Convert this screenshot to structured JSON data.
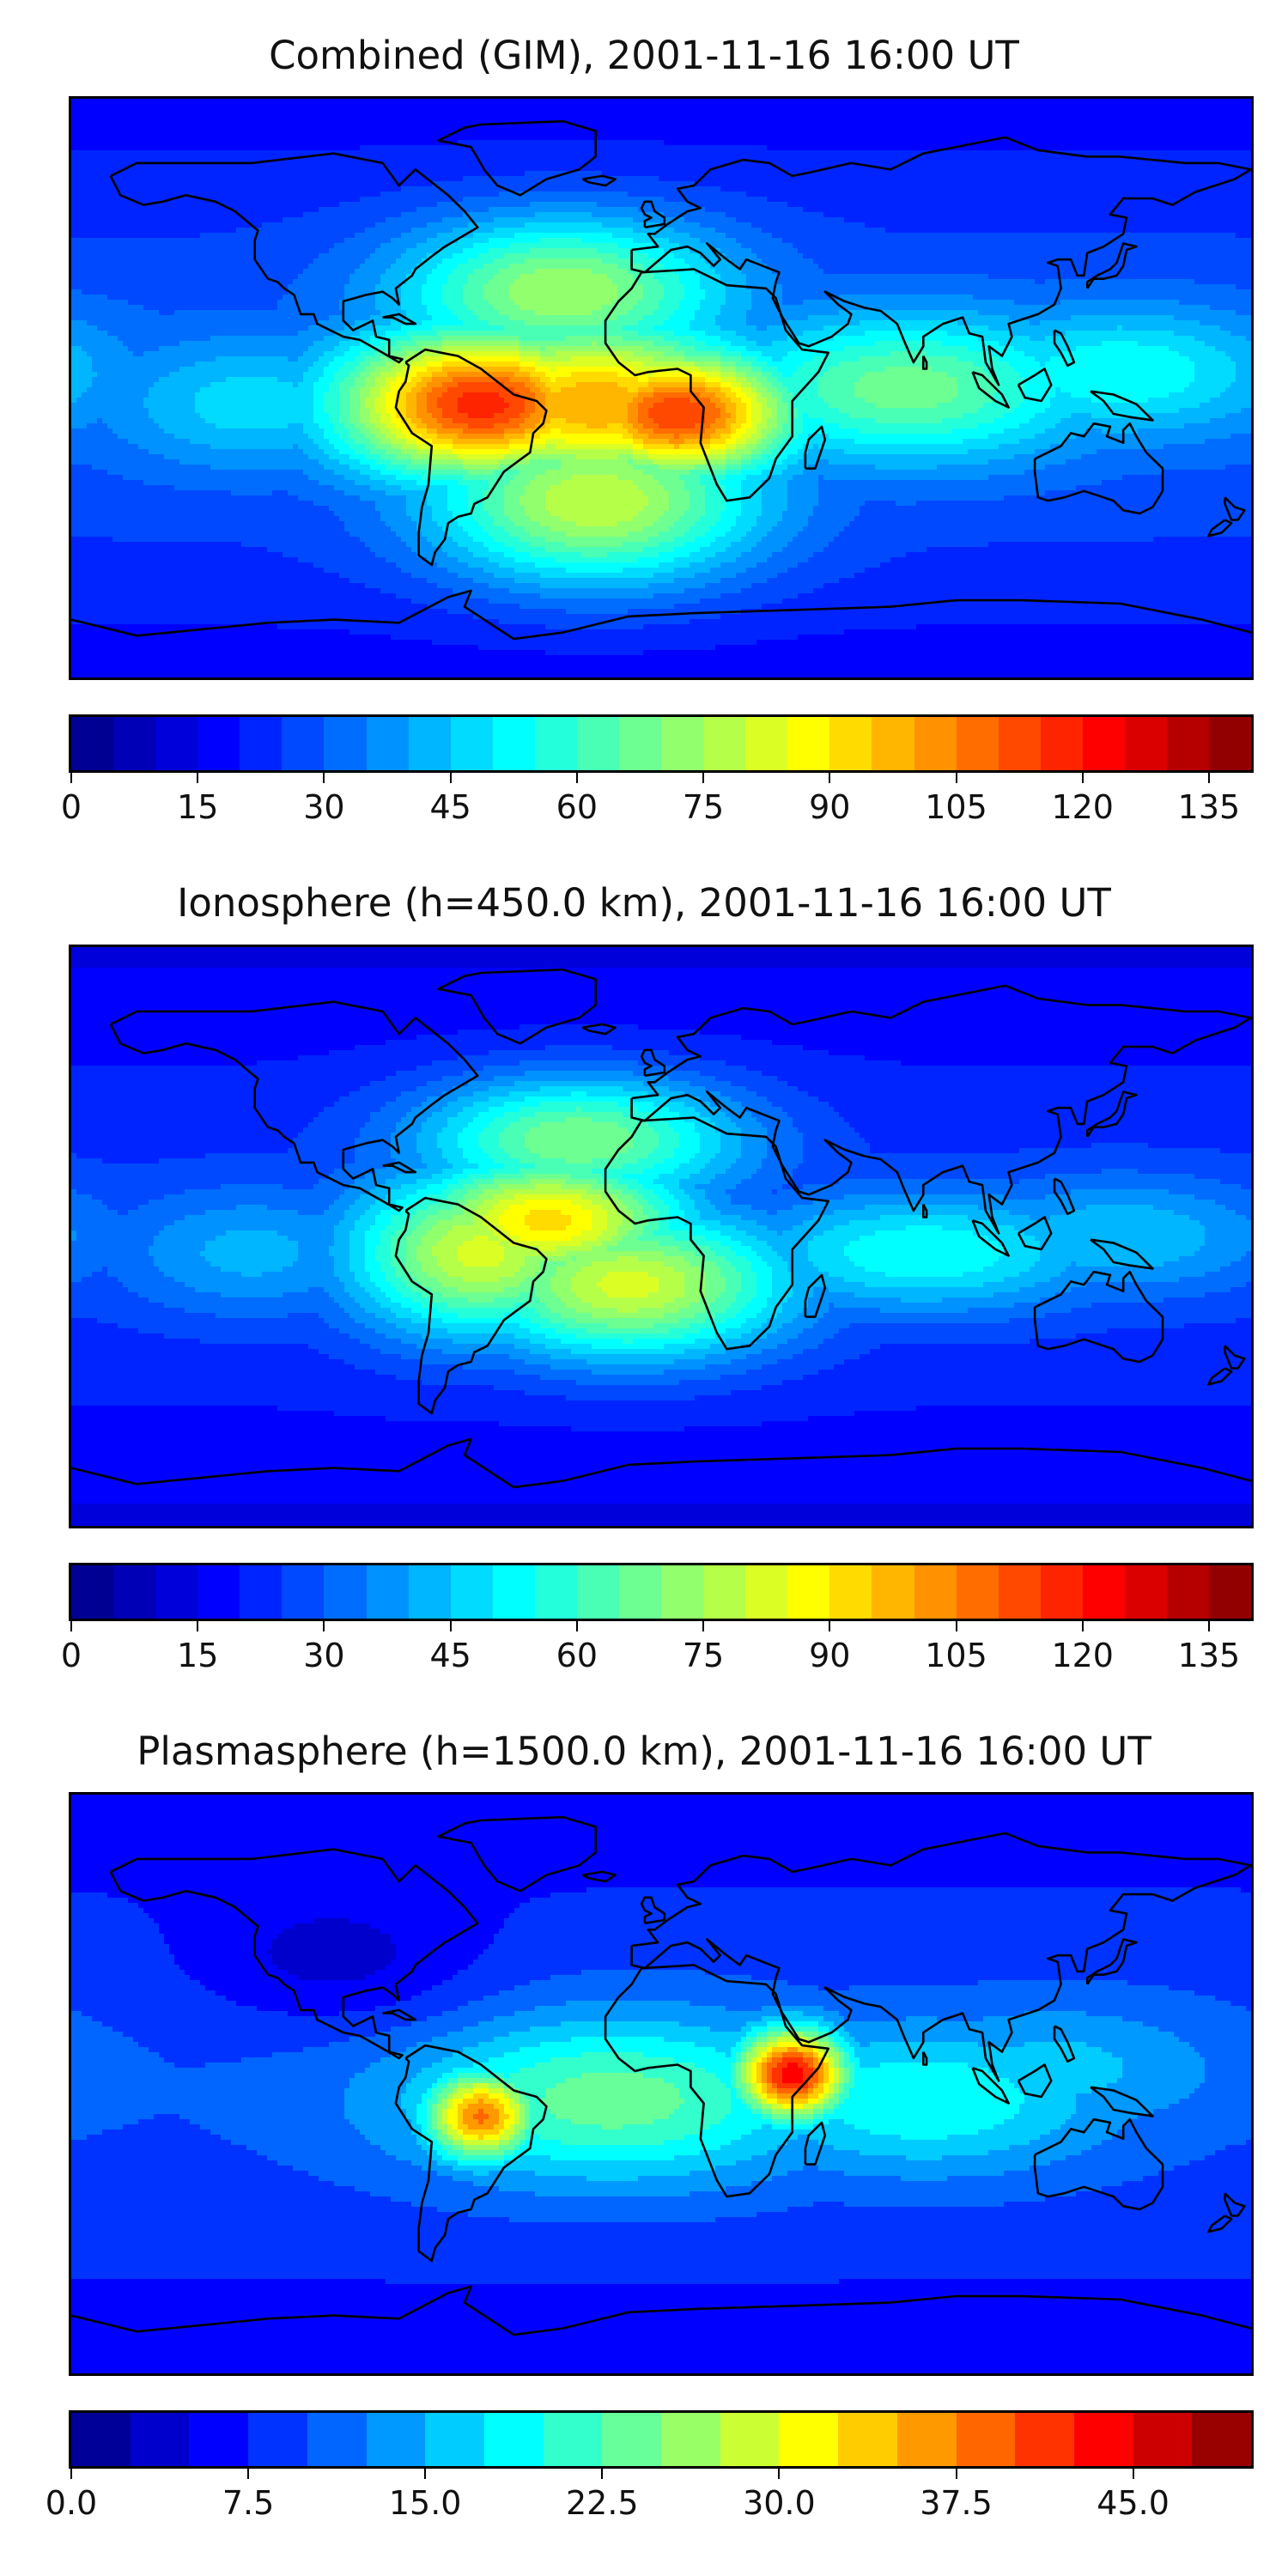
{
  "chart_data": [
    {
      "type": "heatmap",
      "title": "Combined (GIM), 2001-11-16 16:00 UT",
      "colorbar": {
        "min": 0,
        "max": 140,
        "levels": 28,
        "tick_values": [
          0,
          15,
          30,
          45,
          60,
          75,
          90,
          105,
          120,
          135
        ],
        "tick_labels": [
          "0",
          "15",
          "30",
          "45",
          "60",
          "75",
          "90",
          "105",
          "120",
          "135"
        ]
      },
      "background_value": 30,
      "features": [
        {
          "name": "south-america-atlantic-peak",
          "lon": -55,
          "lat": -5,
          "value": 118
        },
        {
          "name": "west-africa-peak",
          "lon": 5,
          "lat": -8,
          "value": 115
        },
        {
          "name": "equatorial-belt-atlantic",
          "lon": -20,
          "lat": -5,
          "value": 100
        },
        {
          "name": "north-atlantic-crest",
          "lon": -30,
          "lat": 30,
          "value": 75
        },
        {
          "name": "south-atlantic-crest",
          "lon": -20,
          "lat": -35,
          "value": 80
        },
        {
          "name": "indian-ocean-belt",
          "lon": 75,
          "lat": 0,
          "value": 68
        },
        {
          "name": "west-pacific-belt",
          "lon": 140,
          "lat": 5,
          "value": 55
        },
        {
          "name": "east-pacific-tail",
          "lon": -125,
          "lat": -5,
          "value": 48
        }
      ]
    },
    {
      "type": "heatmap",
      "title": "Ionosphere  (h=450.0 km), 2001-11-16 16:00 UT",
      "colorbar": {
        "min": 0,
        "max": 140,
        "levels": 28,
        "tick_values": [
          0,
          15,
          30,
          45,
          60,
          75,
          90,
          105,
          120,
          135
        ],
        "tick_labels": [
          "0",
          "15",
          "30",
          "45",
          "60",
          "75",
          "90",
          "105",
          "120",
          "135"
        ]
      },
      "background_value": 25,
      "features": [
        {
          "name": "equatorial-atlantic-peak",
          "lon": -35,
          "lat": 5,
          "value": 92
        },
        {
          "name": "south-america-crest",
          "lon": -55,
          "lat": -5,
          "value": 82
        },
        {
          "name": "south-atlantic-crest",
          "lon": -10,
          "lat": -15,
          "value": 82
        },
        {
          "name": "north-atlantic-crest",
          "lon": -25,
          "lat": 30,
          "value": 70
        },
        {
          "name": "indian-ocean-belt",
          "lon": 80,
          "lat": -5,
          "value": 55
        },
        {
          "name": "west-pacific-belt",
          "lon": 140,
          "lat": 0,
          "value": 45
        },
        {
          "name": "east-pacific-tail",
          "lon": -125,
          "lat": -5,
          "value": 42
        }
      ]
    },
    {
      "type": "heatmap",
      "title": "Plasmasphere (h=1500.0 km), 2001-11-16 16:00 UT",
      "colorbar": {
        "min": 0,
        "max": 50,
        "levels": 20,
        "tick_values": [
          0,
          7.5,
          15,
          22.5,
          30,
          37.5,
          45
        ],
        "tick_labels": [
          "0.0",
          "7.5",
          "15.0",
          "22.5",
          "30.0",
          "37.5",
          "45.0"
        ]
      },
      "background_value": 10,
      "features": [
        {
          "name": "east-africa-peak",
          "lon": 40,
          "lat": 3,
          "value": 44
        },
        {
          "name": "brazil-peak",
          "lon": -55,
          "lat": -10,
          "value": 38
        },
        {
          "name": "atlantic-band",
          "lon": -15,
          "lat": -5,
          "value": 24
        },
        {
          "name": "indian-ocean-band",
          "lon": 80,
          "lat": -5,
          "value": 20
        },
        {
          "name": "southeast-asia-band",
          "lon": 120,
          "lat": 5,
          "value": 16
        },
        {
          "name": "north-america-low",
          "lon": -100,
          "lat": 40,
          "value": 3
        }
      ]
    }
  ]
}
